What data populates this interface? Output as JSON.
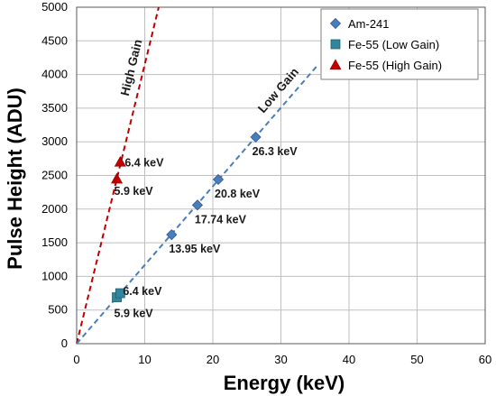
{
  "chart_data": {
    "type": "scatter",
    "xlabel": "Energy (keV)",
    "ylabel": "Pulse Height (ADU)",
    "xlim": [
      0,
      60
    ],
    "ylim": [
      0,
      5000
    ],
    "xticks": [
      "0",
      "10",
      "20",
      "30",
      "40",
      "50",
      "60"
    ],
    "yticks": [
      "0",
      "500",
      "1000",
      "1500",
      "2000",
      "2500",
      "3000",
      "3500",
      "4000",
      "4500",
      "5000"
    ],
    "grid": true,
    "legend_position": "top-right",
    "series": [
      {
        "name": "Am-241",
        "marker": "diamond",
        "color": "#4a7ebb",
        "points": [
          {
            "x": 13.95,
            "y": 1620,
            "label": "13.95 keV"
          },
          {
            "x": 17.74,
            "y": 2060,
            "label": "17.74 keV"
          },
          {
            "x": 20.8,
            "y": 2440,
            "label": "20.8 keV"
          },
          {
            "x": 26.3,
            "y": 3070,
            "label": "26.3 keV"
          }
        ]
      },
      {
        "name": "Fe-55 (Low Gain)",
        "marker": "square",
        "color": "#31859c",
        "points": [
          {
            "x": 5.9,
            "y": 690,
            "label": "5.9 keV"
          },
          {
            "x": 6.4,
            "y": 750,
            "label": "6.4 keV"
          }
        ]
      },
      {
        "name": "Fe-55 (High Gain)",
        "marker": "triangle",
        "color": "#c00000",
        "points": [
          {
            "x": 5.9,
            "y": 2450,
            "label": "5.9 keV"
          },
          {
            "x": 6.4,
            "y": 2700,
            "label": "6.4 keV"
          }
        ]
      }
    ],
    "fit_lines": [
      {
        "label": "High Gain",
        "color": "#c00000",
        "style": "dashed",
        "from": [
          0,
          0
        ],
        "to": [
          12.05,
          5000
        ]
      },
      {
        "label": "Low Gain",
        "color": "#4a7ebb",
        "style": "dashed",
        "from": [
          0,
          0
        ],
        "to": [
          35.5,
          4150
        ]
      }
    ]
  }
}
